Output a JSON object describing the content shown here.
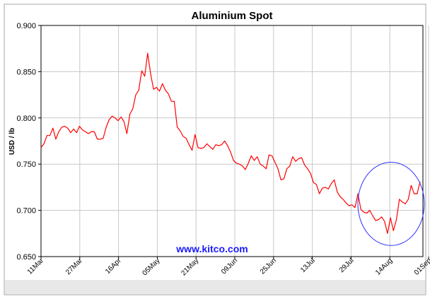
{
  "chart_data": {
    "type": "line",
    "title": "Aluminium Spot",
    "xlabel": "",
    "ylabel": "USD / lb",
    "watermark": "www.kitco.com",
    "ylim": [
      0.65,
      0.9
    ],
    "y_ticks": [
      "0.650",
      "0.700",
      "0.750",
      "0.800",
      "0.850",
      "0.900"
    ],
    "x_ticks": [
      "11Mar",
      "27Mar",
      "16Apr",
      "05May",
      "21May",
      "09Jun",
      "25Jun",
      "13Jul",
      "29Jul",
      "14Aug",
      "01Sep"
    ],
    "grid": true,
    "series": [
      {
        "color": "#ff0000",
        "values": [
          0.768,
          0.772,
          0.781,
          0.781,
          0.789,
          0.777,
          0.785,
          0.79,
          0.791,
          0.789,
          0.784,
          0.788,
          0.784,
          0.791,
          0.787,
          0.785,
          0.783,
          0.785,
          0.785,
          0.777,
          0.777,
          0.778,
          0.79,
          0.798,
          0.802,
          0.8,
          0.797,
          0.801,
          0.796,
          0.783,
          0.804,
          0.81,
          0.825,
          0.83,
          0.851,
          0.845,
          0.87,
          0.848,
          0.831,
          0.833,
          0.829,
          0.837,
          0.83,
          0.826,
          0.818,
          0.818,
          0.79,
          0.786,
          0.78,
          0.778,
          0.771,
          0.765,
          0.782,
          0.768,
          0.767,
          0.768,
          0.772,
          0.769,
          0.766,
          0.771,
          0.77,
          0.771,
          0.775,
          0.77,
          0.763,
          0.754,
          0.751,
          0.75,
          0.748,
          0.744,
          0.751,
          0.759,
          0.754,
          0.758,
          0.75,
          0.748,
          0.745,
          0.76,
          0.759,
          0.752,
          0.745,
          0.733,
          0.734,
          0.745,
          0.748,
          0.758,
          0.753,
          0.756,
          0.757,
          0.749,
          0.745,
          0.74,
          0.73,
          0.728,
          0.718,
          0.724,
          0.725,
          0.723,
          0.729,
          0.733,
          0.72,
          0.715,
          0.712,
          0.708,
          0.705,
          0.706,
          0.703,
          0.718,
          0.701,
          0.698,
          0.697,
          0.7,
          0.694,
          0.689,
          0.69,
          0.693,
          0.688,
          0.675,
          0.692,
          0.678,
          0.69,
          0.712,
          0.709,
          0.707,
          0.712,
          0.727,
          0.718,
          0.718,
          0.731
        ]
      }
    ],
    "highlight_circle": {
      "color": "#3333ff",
      "x_range": [
        "14Aug",
        "after 01Sep"
      ],
      "y_range": [
        0.662,
        0.752
      ]
    }
  }
}
